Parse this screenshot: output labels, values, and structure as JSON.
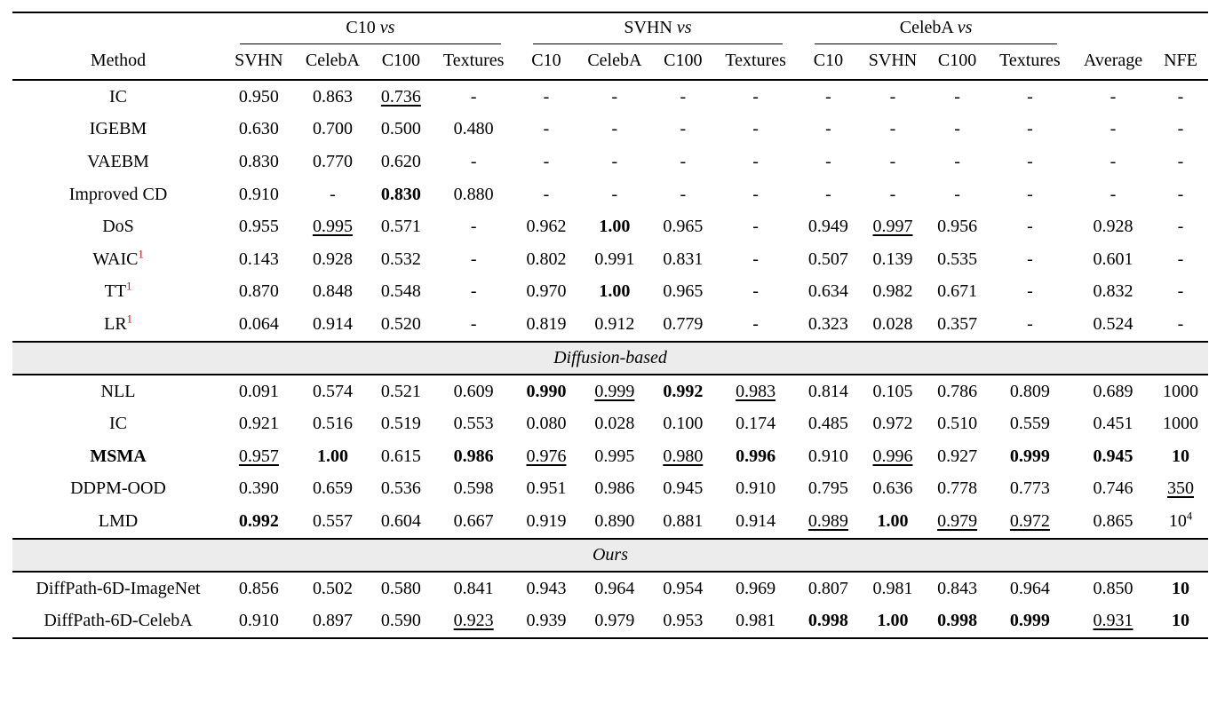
{
  "colors": {
    "footnote_marker": "#d60000",
    "section_band": "#ececec"
  },
  "table": {
    "method_header": "Method",
    "groups": [
      {
        "name": "C10",
        "vs": "vs"
      },
      {
        "name": "SVHN",
        "vs": "vs"
      },
      {
        "name": "CelebA",
        "vs": "vs"
      }
    ],
    "columns": [
      "SVHN",
      "CelebA",
      "C100",
      "Textures",
      "C10",
      "CelebA",
      "C100",
      "Textures",
      "C10",
      "SVHN",
      "C100",
      "Textures",
      "Average",
      "NFE"
    ],
    "sections": [
      {
        "title": null,
        "rows": [
          {
            "method": "IC",
            "values": [
              "0.950",
              "0.863",
              {
                "v": "0.736",
                "u": true
              },
              "-",
              "-",
              "-",
              "-",
              "-",
              "-",
              "-",
              "-",
              "-",
              "-",
              "-"
            ]
          },
          {
            "method": "IGEBM",
            "values": [
              "0.630",
              "0.700",
              "0.500",
              "0.480",
              "-",
              "-",
              "-",
              "-",
              "-",
              "-",
              "-",
              "-",
              "-",
              "-"
            ]
          },
          {
            "method": "VAEBM",
            "values": [
              "0.830",
              "0.770",
              "0.620",
              "-",
              "-",
              "-",
              "-",
              "-",
              "-",
              "-",
              "-",
              "-",
              "-",
              "-"
            ]
          },
          {
            "method": "Improved CD",
            "values": [
              "0.910",
              "-",
              {
                "v": "0.830",
                "b": true
              },
              "0.880",
              "-",
              "-",
              "-",
              "-",
              "-",
              "-",
              "-",
              "-",
              "-",
              "-"
            ]
          },
          {
            "method": "DoS",
            "values": [
              "0.955",
              {
                "v": "0.995",
                "u": true
              },
              "0.571",
              "-",
              "0.962",
              {
                "v": "1.00",
                "b": true
              },
              "0.965",
              "-",
              "0.949",
              {
                "v": "0.997",
                "u": true
              },
              "0.956",
              "-",
              "0.928",
              "-"
            ]
          },
          {
            "method": {
              "v": "WAIC",
              "sup": "1",
              "supRed": true
            },
            "values": [
              "0.143",
              "0.928",
              "0.532",
              "-",
              "0.802",
              "0.991",
              "0.831",
              "-",
              "0.507",
              "0.139",
              "0.535",
              "-",
              "0.601",
              "-"
            ]
          },
          {
            "method": {
              "v": "TT",
              "sup": "1",
              "supRed": true
            },
            "values": [
              "0.870",
              "0.848",
              "0.548",
              "-",
              "0.970",
              {
                "v": "1.00",
                "b": true
              },
              "0.965",
              "-",
              "0.634",
              "0.982",
              "0.671",
              "-",
              "0.832",
              "-"
            ]
          },
          {
            "method": {
              "v": "LR",
              "sup": "1",
              "supRed": true
            },
            "values": [
              "0.064",
              "0.914",
              "0.520",
              "-",
              "0.819",
              "0.912",
              "0.779",
              "-",
              "0.323",
              "0.028",
              "0.357",
              "-",
              "0.524",
              "-"
            ]
          }
        ]
      },
      {
        "title": "Diffusion-based",
        "rows": [
          {
            "method": "NLL",
            "values": [
              "0.091",
              "0.574",
              "0.521",
              "0.609",
              {
                "v": "0.990",
                "b": true
              },
              {
                "v": "0.999",
                "u": true
              },
              {
                "v": "0.992",
                "b": true
              },
              {
                "v": "0.983",
                "u": true
              },
              "0.814",
              "0.105",
              "0.786",
              "0.809",
              "0.689",
              "1000"
            ]
          },
          {
            "method": "IC",
            "values": [
              "0.921",
              "0.516",
              "0.519",
              "0.553",
              "0.080",
              "0.028",
              "0.100",
              "0.174",
              "0.485",
              "0.972",
              "0.510",
              "0.559",
              "0.451",
              "1000"
            ]
          },
          {
            "method": {
              "v": "MSMA",
              "b": true
            },
            "values": [
              {
                "v": "0.957",
                "u": true
              },
              {
                "v": "1.00",
                "b": true
              },
              "0.615",
              {
                "v": "0.986",
                "b": true
              },
              {
                "v": "0.976",
                "u": true
              },
              "0.995",
              {
                "v": "0.980",
                "u": true
              },
              {
                "v": "0.996",
                "b": true
              },
              "0.910",
              {
                "v": "0.996",
                "u": true
              },
              "0.927",
              {
                "v": "0.999",
                "b": true
              },
              {
                "v": "0.945",
                "b": true
              },
              {
                "v": "10",
                "b": true
              }
            ]
          },
          {
            "method": "DDPM-OOD",
            "values": [
              "0.390",
              "0.659",
              "0.536",
              "0.598",
              "0.951",
              "0.986",
              "0.945",
              "0.910",
              "0.795",
              "0.636",
              "0.778",
              "0.773",
              "0.746",
              {
                "v": "350",
                "u": true
              }
            ]
          },
          {
            "method": "LMD",
            "values": [
              {
                "v": "0.992",
                "b": true
              },
              "0.557",
              "0.604",
              "0.667",
              "0.919",
              "0.890",
              "0.881",
              "0.914",
              {
                "v": "0.989",
                "u": true
              },
              {
                "v": "1.00",
                "b": true
              },
              {
                "v": "0.979",
                "u": true
              },
              {
                "v": "0.972",
                "u": true
              },
              "0.865",
              {
                "v": "10",
                "sup": "4"
              }
            ]
          }
        ]
      },
      {
        "title": "Ours",
        "rows": [
          {
            "method": "DiffPath-6D-ImageNet",
            "values": [
              "0.856",
              "0.502",
              "0.580",
              "0.841",
              "0.943",
              "0.964",
              "0.954",
              "0.969",
              "0.807",
              "0.981",
              "0.843",
              "0.964",
              "0.850",
              {
                "v": "10",
                "b": true
              }
            ]
          },
          {
            "method": "DiffPath-6D-CelebA",
            "values": [
              "0.910",
              "0.897",
              "0.590",
              {
                "v": "0.923",
                "u": true
              },
              "0.939",
              "0.979",
              "0.953",
              "0.981",
              {
                "v": "0.998",
                "b": true
              },
              {
                "v": "1.00",
                "b": true
              },
              {
                "v": "0.998",
                "b": true
              },
              {
                "v": "0.999",
                "b": true
              },
              {
                "v": "0.931",
                "u": true
              },
              {
                "v": "10",
                "b": true
              }
            ]
          }
        ]
      }
    ]
  }
}
